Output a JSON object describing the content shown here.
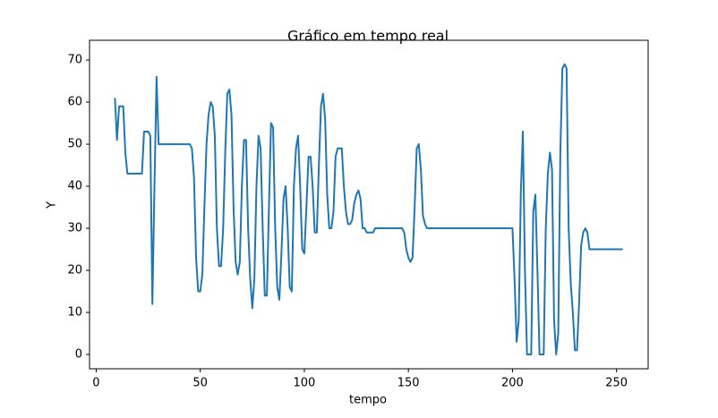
{
  "chart_data": {
    "type": "line",
    "title": "Gráfico em tempo real",
    "x_label": "tempo",
    "y_label": "Y",
    "color": "#1f77b4",
    "x": [
      9,
      10,
      11,
      12,
      13,
      14,
      15,
      16,
      17,
      18,
      19,
      20,
      21,
      22,
      23,
      24,
      25,
      26,
      27,
      28,
      29,
      30,
      31,
      32,
      33,
      34,
      35,
      36,
      37,
      38,
      39,
      40,
      41,
      42,
      43,
      44,
      45,
      46,
      47,
      48,
      49,
      50,
      51,
      52,
      53,
      54,
      55,
      56,
      57,
      58,
      59,
      60,
      61,
      62,
      63,
      64,
      65,
      66,
      67,
      68,
      69,
      70,
      71,
      72,
      73,
      74,
      75,
      76,
      77,
      78,
      79,
      80,
      81,
      82,
      83,
      84,
      85,
      86,
      87,
      88,
      89,
      90,
      91,
      92,
      93,
      94,
      95,
      96,
      97,
      98,
      99,
      100,
      101,
      102,
      103,
      104,
      105,
      106,
      107,
      108,
      109,
      110,
      111,
      112,
      113,
      114,
      115,
      116,
      117,
      118,
      119,
      120,
      121,
      122,
      123,
      124,
      125,
      126,
      127,
      128,
      129,
      130,
      131,
      132,
      133,
      134,
      135,
      136,
      137,
      138,
      139,
      140,
      141,
      142,
      143,
      144,
      145,
      146,
      147,
      148,
      149,
      150,
      151,
      152,
      153,
      154,
      155,
      156,
      157,
      158,
      159,
      160,
      161,
      162,
      163,
      164,
      165,
      166,
      167,
      168,
      169,
      170,
      171,
      172,
      173,
      174,
      175,
      176,
      177,
      178,
      179,
      180,
      181,
      182,
      183,
      184,
      185,
      186,
      187,
      188,
      189,
      190,
      191,
      192,
      193,
      194,
      195,
      196,
      197,
      198,
      199,
      200,
      201,
      202,
      203,
      204,
      205,
      206,
      207,
      208,
      209,
      210,
      211,
      212,
      213,
      214,
      215,
      216,
      217,
      218,
      219,
      220,
      221,
      222,
      223,
      224,
      225,
      226,
      227,
      228,
      229,
      230,
      231,
      232,
      233,
      234,
      235,
      236,
      237,
      238,
      239,
      240,
      241,
      242,
      243,
      244,
      245,
      246,
      247,
      248,
      249,
      250,
      251,
      252,
      253
    ],
    "values": [
      61,
      51,
      59,
      59,
      59,
      48,
      43,
      43,
      43,
      43,
      43,
      43,
      43,
      43,
      53,
      53,
      53,
      52,
      12,
      40,
      66,
      50,
      50,
      50,
      50,
      50,
      50,
      50,
      50,
      50,
      50,
      50,
      50,
      50,
      50,
      50,
      50,
      49,
      42,
      23,
      15,
      15,
      19,
      35,
      50,
      57,
      60,
      59,
      52,
      30,
      21,
      21,
      30,
      48,
      62,
      63,
      57,
      35,
      22,
      19,
      22,
      40,
      51,
      51,
      30,
      18,
      11,
      18,
      40,
      52,
      49,
      30,
      14,
      14,
      35,
      55,
      54,
      30,
      16,
      13,
      24,
      37,
      40,
      30,
      16,
      15,
      40,
      49,
      52,
      40,
      25,
      24,
      35,
      47,
      47,
      40,
      29,
      29,
      45,
      59,
      62,
      56,
      38,
      30,
      30,
      34,
      47,
      49,
      49,
      49,
      40,
      34,
      31,
      31,
      32,
      36,
      38,
      39,
      37,
      30,
      30,
      29,
      29,
      29,
      29,
      30,
      30,
      30,
      30,
      30,
      30,
      30,
      30,
      30,
      30,
      30,
      30,
      30,
      30,
      29,
      25,
      23,
      22,
      23,
      35,
      49,
      50,
      44,
      33,
      31,
      30,
      30,
      30,
      30,
      30,
      30,
      30,
      30,
      30,
      30,
      30,
      30,
      30,
      30,
      30,
      30,
      30,
      30,
      30,
      30,
      30,
      30,
      30,
      30,
      30,
      30,
      30,
      30,
      30,
      30,
      30,
      30,
      30,
      30,
      30,
      30,
      30,
      30,
      30,
      30,
      30,
      30,
      18,
      3,
      8,
      38,
      53,
      20,
      0,
      0,
      0,
      34,
      38,
      20,
      0,
      0,
      0,
      30,
      43,
      48,
      44,
      8,
      0,
      5,
      48,
      68,
      69,
      68,
      30,
      17,
      10,
      1,
      1,
      12,
      26,
      29,
      30,
      29,
      25,
      25,
      25,
      25,
      25,
      25,
      25,
      25,
      25,
      25,
      25,
      25,
      25,
      25,
      25,
      25,
      25
    ],
    "xlim": [
      -3.2,
      265.2
    ],
    "xticks": [
      0,
      50,
      100,
      150,
      200,
      250
    ],
    "ylim": [
      -3.4,
      74.7
    ],
    "yticks": [
      0,
      10,
      20,
      30,
      40,
      50,
      60,
      70
    ]
  }
}
